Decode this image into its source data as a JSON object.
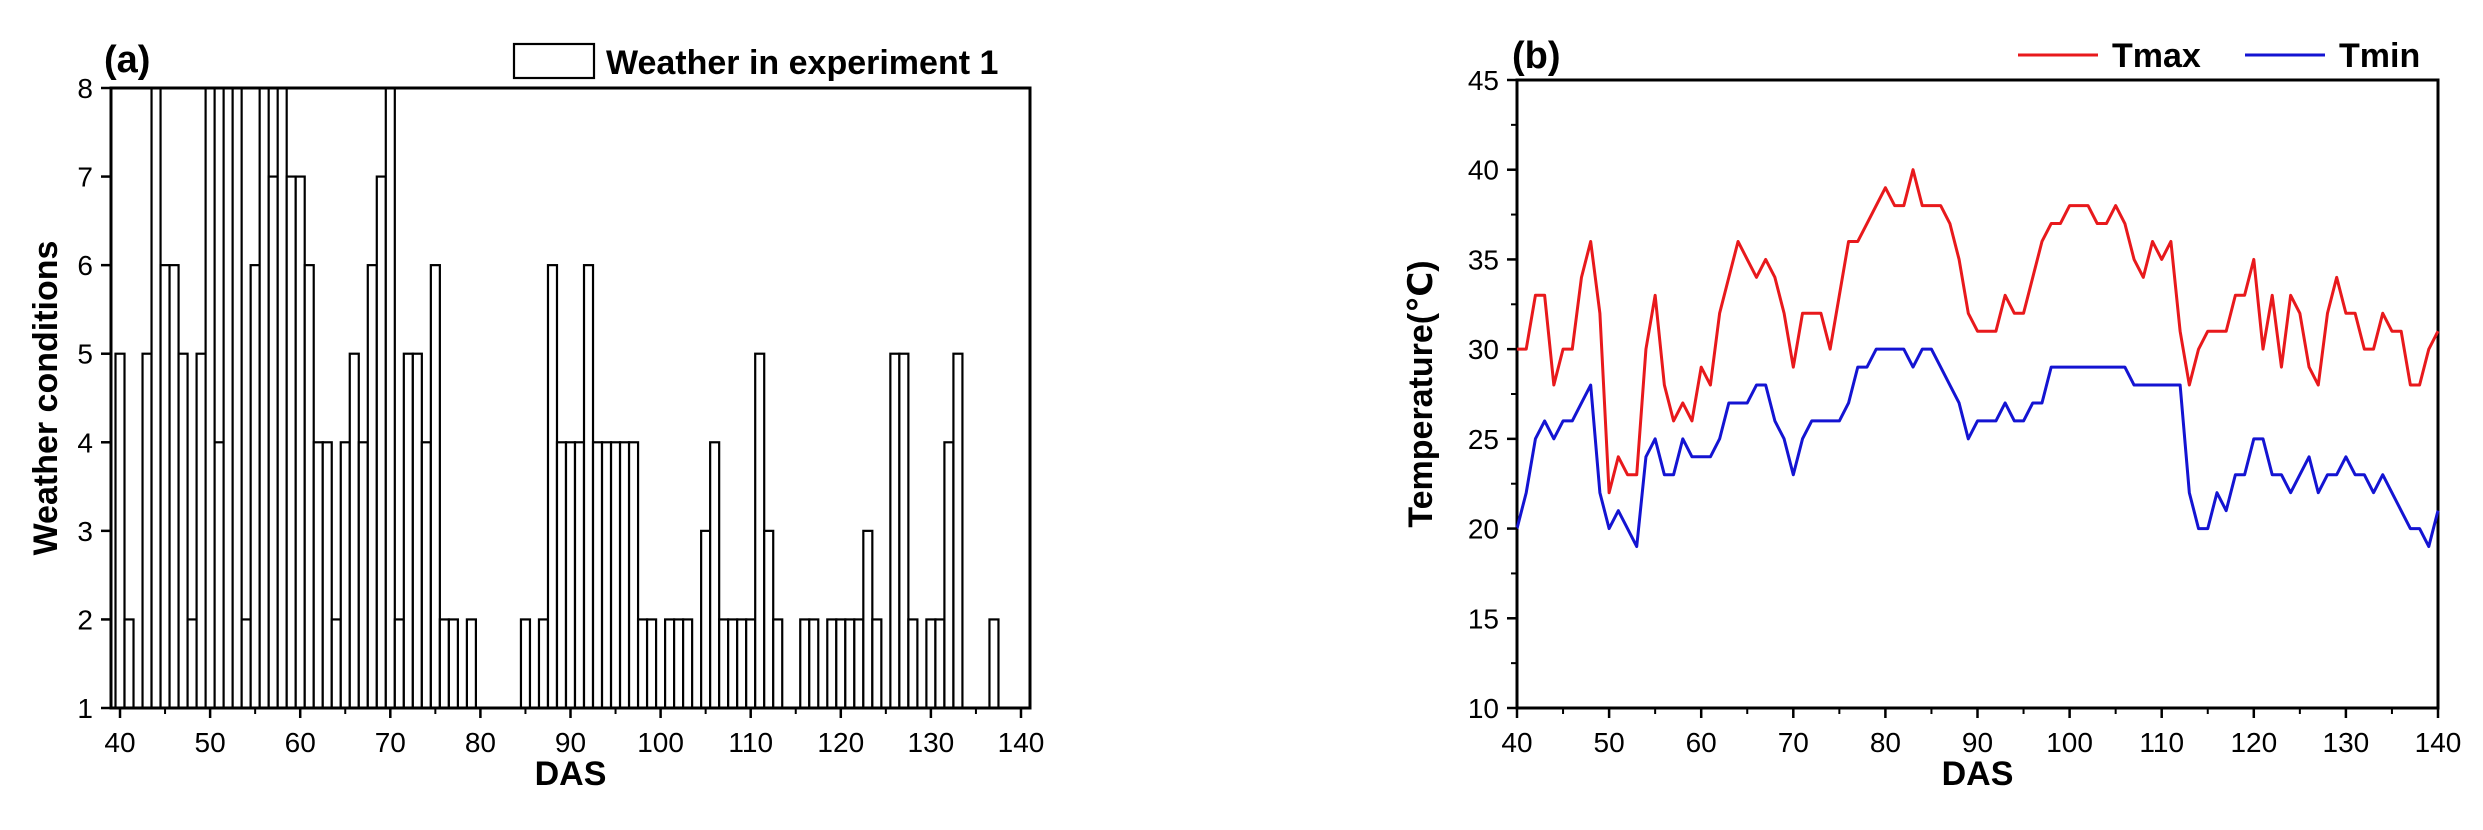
{
  "chart_data": [
    {
      "type": "bar",
      "panel_label": "(a)",
      "title": "",
      "xlabel": "DAS",
      "ylabel": "Weather conditions",
      "xlim": [
        39,
        141
      ],
      "ylim": [
        1,
        8
      ],
      "xticks": [
        40,
        50,
        60,
        70,
        80,
        90,
        100,
        110,
        120,
        130,
        140
      ],
      "yticks": [
        1,
        2,
        3,
        4,
        5,
        6,
        7,
        8
      ],
      "legend": {
        "label": "Weather in experiment 1",
        "position": "top-right"
      },
      "series": [
        {
          "name": "Weather in experiment 1",
          "x": [
            40,
            41,
            43,
            44,
            45,
            46,
            47,
            48,
            49,
            50,
            51,
            52,
            53,
            54,
            55,
            56,
            57,
            58,
            59,
            60,
            61,
            62,
            63,
            64,
            65,
            66,
            67,
            68,
            69,
            70,
            71,
            72,
            73,
            74,
            75,
            76,
            77,
            79,
            85,
            87,
            88,
            89,
            90,
            91,
            92,
            93,
            94,
            95,
            96,
            97,
            98,
            99,
            101,
            102,
            103,
            105,
            106,
            107,
            108,
            109,
            110,
            111,
            112,
            113,
            116,
            117,
            119,
            120,
            121,
            122,
            123,
            124,
            126,
            127,
            128,
            130,
            131,
            132,
            133,
            137
          ],
          "values": [
            5,
            2,
            5,
            8,
            6,
            6,
            5,
            2,
            5,
            8,
            4,
            8,
            8,
            2,
            6,
            8,
            7,
            8,
            7,
            7,
            6,
            4,
            4,
            2,
            4,
            5,
            4,
            6,
            7,
            8,
            2,
            5,
            5,
            4,
            6,
            2,
            2,
            2,
            2,
            2,
            6,
            4,
            4,
            4,
            6,
            4,
            4,
            4,
            4,
            4,
            2,
            2,
            2,
            2,
            2,
            3,
            4,
            2,
            2,
            2,
            2,
            5,
            3,
            2,
            2,
            2,
            2,
            2,
            2,
            2,
            3,
            2,
            5,
            5,
            2,
            2,
            2,
            4,
            5,
            2
          ]
        }
      ]
    },
    {
      "type": "line",
      "panel_label": "(b)",
      "title": "",
      "xlabel": "DAS",
      "ylabel": "Temperature(℃)",
      "xlim": [
        40,
        140
      ],
      "ylim": [
        10,
        45
      ],
      "xticks": [
        40,
        50,
        60,
        70,
        80,
        90,
        100,
        110,
        120,
        130,
        140
      ],
      "yticks": [
        10,
        15,
        20,
        25,
        30,
        35,
        40,
        45
      ],
      "legend_position": "top-right",
      "x": [
        40,
        41,
        42,
        43,
        44,
        45,
        46,
        47,
        48,
        49,
        50,
        51,
        52,
        53,
        54,
        55,
        56,
        57,
        58,
        59,
        60,
        61,
        62,
        63,
        64,
        65,
        66,
        67,
        68,
        69,
        70,
        71,
        72,
        73,
        74,
        75,
        76,
        77,
        78,
        79,
        80,
        81,
        82,
        83,
        84,
        85,
        86,
        87,
        88,
        89,
        90,
        91,
        92,
        93,
        94,
        95,
        96,
        97,
        98,
        99,
        100,
        101,
        102,
        103,
        104,
        105,
        106,
        107,
        108,
        109,
        110,
        111,
        112,
        113,
        114,
        115,
        116,
        117,
        118,
        119,
        120,
        121,
        122,
        123,
        124,
        125,
        126,
        127,
        128,
        129,
        130,
        131,
        132,
        133,
        134,
        135,
        136,
        137,
        138,
        139,
        140
      ],
      "series": [
        {
          "name": "Tmax",
          "color": "#e8191c",
          "values": [
            30,
            30,
            33,
            33,
            28,
            30,
            30,
            34,
            36,
            32,
            22,
            24,
            23,
            23,
            30,
            33,
            28,
            26,
            27,
            26,
            29,
            28,
            32,
            34,
            36,
            35,
            34,
            35,
            34,
            32,
            29,
            32,
            32,
            32,
            30,
            33,
            36,
            36,
            37,
            38,
            39,
            38,
            38,
            40,
            38,
            38,
            38,
            37,
            35,
            32,
            31,
            31,
            31,
            33,
            32,
            32,
            34,
            36,
            37,
            37,
            38,
            38,
            38,
            37,
            37,
            38,
            37,
            35,
            34,
            36,
            35,
            36,
            31,
            28,
            30,
            31,
            31,
            31,
            33,
            33,
            35,
            30,
            33,
            29,
            33,
            32,
            29,
            28,
            32,
            34,
            32,
            32,
            30,
            30,
            32,
            31,
            31,
            28,
            28,
            30,
            31
          ]
        },
        {
          "name": "Tmin",
          "color": "#1414d2",
          "values": [
            20,
            22,
            25,
            26,
            25,
            26,
            26,
            27,
            28,
            22,
            20,
            21,
            20,
            19,
            24,
            25,
            23,
            23,
            25,
            24,
            24,
            24,
            25,
            27,
            27,
            27,
            28,
            28,
            26,
            25,
            23,
            25,
            26,
            26,
            26,
            26,
            27,
            29,
            29,
            30,
            30,
            30,
            30,
            29,
            30,
            30,
            29,
            28,
            27,
            25,
            26,
            26,
            26,
            27,
            26,
            26,
            27,
            27,
            29,
            29,
            29,
            29,
            29,
            29,
            29,
            29,
            29,
            28,
            28,
            28,
            28,
            28,
            28,
            22,
            20,
            20,
            22,
            21,
            23,
            23,
            25,
            25,
            23,
            23,
            22,
            23,
            24,
            22,
            23,
            23,
            24,
            23,
            23,
            22,
            23,
            22,
            21,
            20,
            20,
            19,
            21
          ]
        }
      ]
    }
  ]
}
